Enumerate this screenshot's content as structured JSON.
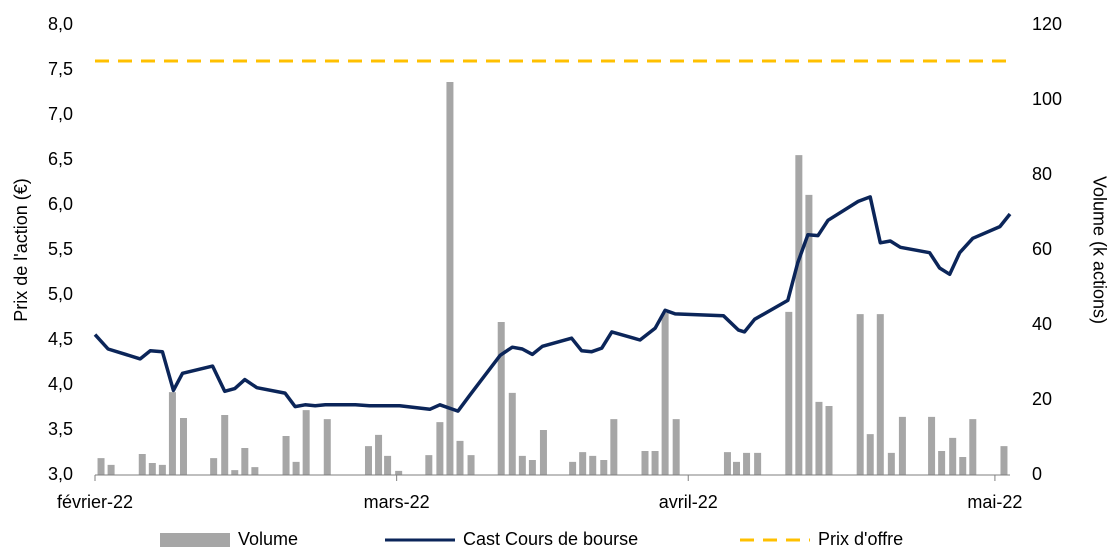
{
  "chart_data": {
    "type": "combo",
    "ylabel": "Prix de l'action (€)",
    "y2label": "Volume (k actions)",
    "xlim": [
      0,
      91
    ],
    "xticks": [
      {
        "value": 0,
        "label": "février-22"
      },
      {
        "value": 30,
        "label": "mars-22"
      },
      {
        "value": 59,
        "label": "avril-22"
      },
      {
        "value": 89.5,
        "label": "mai-22"
      }
    ],
    "ylim": [
      3,
      8
    ],
    "yticks": [
      {
        "value": 3,
        "label": "3,0"
      },
      {
        "value": 3.5,
        "label": "3,5"
      },
      {
        "value": 4,
        "label": "4,0"
      },
      {
        "value": 4.5,
        "label": "4,5"
      },
      {
        "value": 5,
        "label": "5,0"
      },
      {
        "value": 5.5,
        "label": "5,5"
      },
      {
        "value": 6,
        "label": "6,0"
      },
      {
        "value": 6.5,
        "label": "6,5"
      },
      {
        "value": 7,
        "label": "7,0"
      },
      {
        "value": 7.5,
        "label": "7,5"
      },
      {
        "value": 8,
        "label": "8,0"
      }
    ],
    "y2lim": [
      0,
      120
    ],
    "y2ticks": [
      0,
      20,
      40,
      60,
      80,
      100,
      120
    ],
    "legend": "bottom",
    "series": [
      {
        "name": "Volume",
        "type": "bar",
        "axis": "y2",
        "color": "#a6a6a6",
        "x": [
          0.6,
          1.6,
          4.7,
          5.7,
          6.7,
          7.7,
          8.8,
          11.8,
          12.9,
          13.9,
          14.9,
          15.9,
          19.0,
          20.0,
          21.0,
          23.1,
          27.2,
          28.2,
          29.1,
          30.2,
          33.2,
          34.3,
          35.3,
          36.3,
          37.4,
          40.4,
          41.5,
          42.5,
          43.5,
          44.6,
          47.5,
          48.5,
          49.5,
          50.6,
          51.6,
          54.7,
          55.7,
          56.7,
          57.8,
          62.9,
          63.8,
          64.8,
          65.9,
          69.0,
          70.0,
          71.0,
          72.0,
          73.0,
          76.1,
          77.1,
          78.1,
          79.2,
          80.3,
          83.2,
          84.2,
          85.3,
          86.3,
          87.3,
          90.4
        ],
        "values": [
          4.5,
          2.7,
          5.6,
          3.2,
          2.7,
          22.1,
          15.2,
          4.5,
          16,
          1.3,
          7.2,
          2.1,
          10.4,
          3.5,
          17.3,
          14.9,
          7.7,
          10.7,
          5.1,
          1.1,
          5.3,
          14.1,
          104.8,
          9.1,
          5.3,
          40.8,
          21.9,
          5.1,
          4,
          12,
          3.5,
          6.1,
          5.1,
          4,
          14.9,
          6.4,
          6.4,
          43.2,
          14.9,
          6.1,
          3.5,
          5.9,
          5.9,
          43.5,
          85.3,
          74.7,
          19.5,
          18.4,
          42.9,
          10.9,
          42.9,
          5.9,
          15.5,
          15.5,
          6.4,
          9.9,
          4.8,
          14.9,
          7.7
        ]
      },
      {
        "name": "Cast Cours de bourse",
        "type": "line",
        "color": "#0b2559",
        "x": [
          0,
          1.3,
          4.5,
          5.5,
          6.7,
          7.8,
          8.7,
          11.7,
          12.9,
          13.9,
          14.9,
          16.1,
          18.9,
          19.9,
          20.9,
          21.9,
          22.9,
          25.9,
          27.3,
          30.3,
          33.3,
          34.3,
          36.1,
          37.3,
          40.3,
          41.5,
          42.5,
          43.5,
          44.5,
          47.4,
          48.4,
          49.4,
          50.4,
          51.4,
          54.2,
          55.7,
          56.7,
          57.7,
          62.5,
          64.0,
          64.6,
          65.6,
          68.9,
          69.9,
          70.9,
          71.9,
          72.9,
          75.9,
          77.1,
          78.1,
          79.1,
          80.1,
          83.0,
          84.0,
          85.0,
          86.0,
          87.3,
          90.0,
          91.0
        ],
        "values": [
          4.56,
          4.4,
          4.29,
          4.38,
          4.37,
          3.94,
          4.13,
          4.21,
          3.93,
          3.96,
          4.06,
          3.97,
          3.91,
          3.76,
          3.78,
          3.77,
          3.78,
          3.78,
          3.77,
          3.77,
          3.73,
          3.78,
          3.71,
          3.89,
          4.33,
          4.42,
          4.4,
          4.34,
          4.43,
          4.52,
          4.38,
          4.37,
          4.41,
          4.59,
          4.5,
          4.63,
          4.83,
          4.79,
          4.77,
          4.61,
          4.59,
          4.73,
          4.94,
          5.36,
          5.67,
          5.66,
          5.83,
          6.04,
          6.09,
          5.58,
          5.6,
          5.53,
          5.47,
          5.3,
          5.23,
          5.47,
          5.63,
          5.76,
          5.9
        ]
      },
      {
        "name": "Prix d'offre",
        "type": "line",
        "dash": true,
        "color": "#ffc000",
        "x": [
          0,
          91
        ],
        "values": [
          7.6,
          7.6
        ]
      }
    ]
  }
}
